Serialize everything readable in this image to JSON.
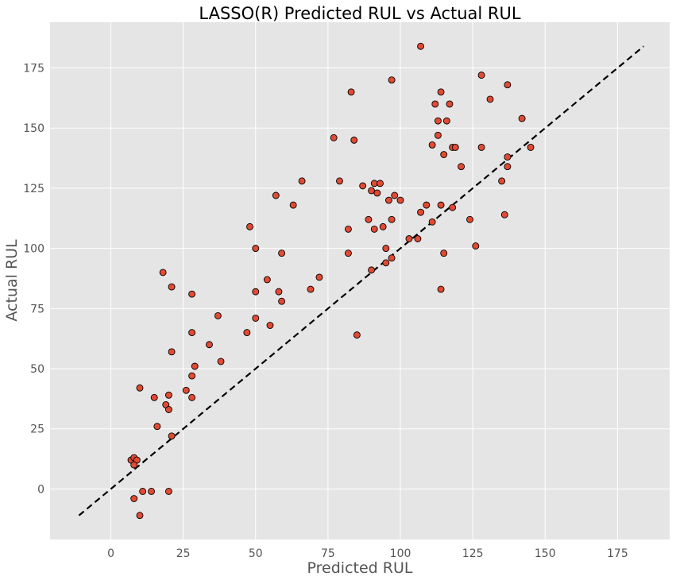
{
  "chart_data": {
    "type": "scatter",
    "title": "LASSO(R) Predicted RUL vs Actual RUL",
    "xlabel": "Predicted RUL",
    "ylabel": "Actual RUL",
    "xlim": [
      -21,
      193
    ],
    "ylim": [
      -21,
      194
    ],
    "xticks": [
      0,
      25,
      50,
      75,
      100,
      125,
      150,
      175
    ],
    "yticks": [
      0,
      25,
      50,
      75,
      100,
      125,
      150,
      175
    ],
    "grid": true,
    "style": "ggplot",
    "marker_color": "#E24A33",
    "marker_edge_color": "#000000",
    "reference_line": {
      "x": [
        -11,
        184
      ],
      "y": [
        -11,
        184
      ],
      "style": "dashed",
      "color": "#000000"
    },
    "points": [
      {
        "x": 107,
        "y": 184
      },
      {
        "x": 97,
        "y": 170
      },
      {
        "x": 128,
        "y": 172
      },
      {
        "x": 137,
        "y": 168
      },
      {
        "x": 83,
        "y": 165
      },
      {
        "x": 114,
        "y": 165
      },
      {
        "x": 131,
        "y": 162
      },
      {
        "x": 112,
        "y": 160
      },
      {
        "x": 117,
        "y": 160
      },
      {
        "x": 142,
        "y": 154
      },
      {
        "x": 113,
        "y": 153
      },
      {
        "x": 116,
        "y": 153
      },
      {
        "x": 113,
        "y": 147
      },
      {
        "x": 77,
        "y": 146
      },
      {
        "x": 84,
        "y": 145
      },
      {
        "x": 111,
        "y": 143
      },
      {
        "x": 118,
        "y": 142
      },
      {
        "x": 119,
        "y": 142
      },
      {
        "x": 128,
        "y": 142
      },
      {
        "x": 145,
        "y": 142
      },
      {
        "x": 115,
        "y": 139
      },
      {
        "x": 137,
        "y": 138
      },
      {
        "x": 121,
        "y": 134
      },
      {
        "x": 137,
        "y": 134
      },
      {
        "x": 66,
        "y": 128
      },
      {
        "x": 79,
        "y": 128
      },
      {
        "x": 135,
        "y": 128
      },
      {
        "x": 87,
        "y": 126
      },
      {
        "x": 91,
        "y": 127
      },
      {
        "x": 93,
        "y": 127
      },
      {
        "x": 90,
        "y": 124
      },
      {
        "x": 92,
        "y": 123
      },
      {
        "x": 57,
        "y": 122
      },
      {
        "x": 98,
        "y": 122
      },
      {
        "x": 96,
        "y": 120
      },
      {
        "x": 100,
        "y": 120
      },
      {
        "x": 63,
        "y": 118
      },
      {
        "x": 109,
        "y": 118
      },
      {
        "x": 114,
        "y": 118
      },
      {
        "x": 118,
        "y": 117
      },
      {
        "x": 107,
        "y": 115
      },
      {
        "x": 136,
        "y": 114
      },
      {
        "x": 89,
        "y": 112
      },
      {
        "x": 97,
        "y": 112
      },
      {
        "x": 124,
        "y": 112
      },
      {
        "x": 111,
        "y": 111
      },
      {
        "x": 48,
        "y": 109
      },
      {
        "x": 82,
        "y": 108
      },
      {
        "x": 91,
        "y": 108
      },
      {
        "x": 94,
        "y": 109
      },
      {
        "x": 103,
        "y": 104
      },
      {
        "x": 106,
        "y": 104
      },
      {
        "x": 126,
        "y": 101
      },
      {
        "x": 50,
        "y": 100
      },
      {
        "x": 95,
        "y": 100
      },
      {
        "x": 59,
        "y": 98
      },
      {
        "x": 82,
        "y": 98
      },
      {
        "x": 115,
        "y": 98
      },
      {
        "x": 97,
        "y": 96
      },
      {
        "x": 95,
        "y": 94
      },
      {
        "x": 90,
        "y": 91
      },
      {
        "x": 18,
        "y": 90
      },
      {
        "x": 72,
        "y": 88
      },
      {
        "x": 54,
        "y": 87
      },
      {
        "x": 21,
        "y": 84
      },
      {
        "x": 114,
        "y": 83
      },
      {
        "x": 50,
        "y": 82
      },
      {
        "x": 58,
        "y": 82
      },
      {
        "x": 69,
        "y": 83
      },
      {
        "x": 28,
        "y": 81
      },
      {
        "x": 59,
        "y": 78
      },
      {
        "x": 37,
        "y": 72
      },
      {
        "x": 50,
        "y": 71
      },
      {
        "x": 55,
        "y": 68
      },
      {
        "x": 28,
        "y": 65
      },
      {
        "x": 47,
        "y": 65
      },
      {
        "x": 85,
        "y": 64
      },
      {
        "x": 34,
        "y": 60
      },
      {
        "x": 21,
        "y": 57
      },
      {
        "x": 38,
        "y": 53
      },
      {
        "x": 29,
        "y": 51
      },
      {
        "x": 28,
        "y": 47
      },
      {
        "x": 10,
        "y": 42
      },
      {
        "x": 26,
        "y": 41
      },
      {
        "x": 20,
        "y": 39
      },
      {
        "x": 15,
        "y": 38
      },
      {
        "x": 28,
        "y": 38
      },
      {
        "x": 19,
        "y": 35
      },
      {
        "x": 20,
        "y": 33
      },
      {
        "x": 16,
        "y": 26
      },
      {
        "x": 21,
        "y": 22
      },
      {
        "x": 7,
        "y": 12
      },
      {
        "x": 8,
        "y": 13
      },
      {
        "x": 9,
        "y": 12
      },
      {
        "x": 8,
        "y": 10
      },
      {
        "x": 11,
        "y": -1
      },
      {
        "x": 14,
        "y": -1
      },
      {
        "x": 20,
        "y": -1
      },
      {
        "x": 8,
        "y": -4
      },
      {
        "x": 10,
        "y": -11
      }
    ]
  }
}
